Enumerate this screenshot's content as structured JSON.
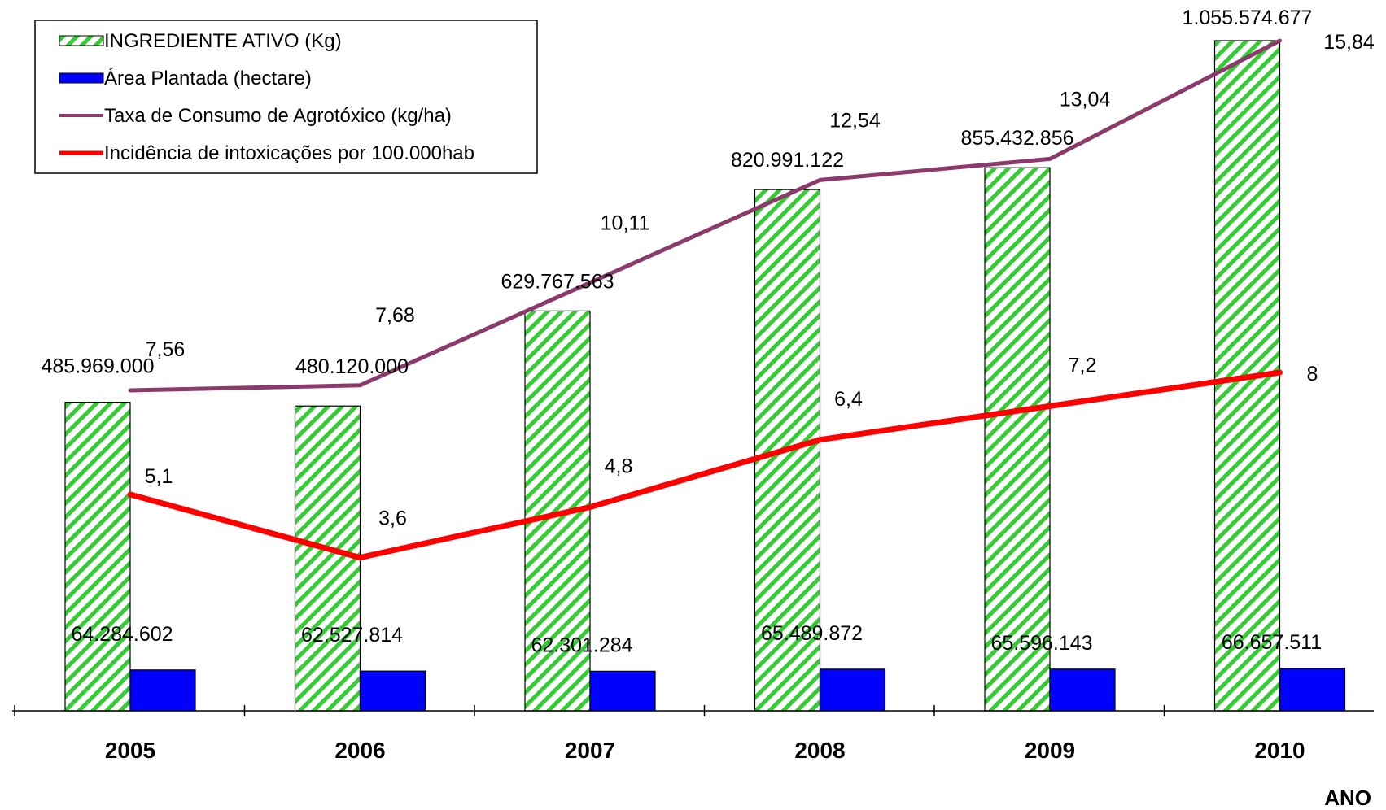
{
  "chart_data": {
    "type": "bar",
    "categories": [
      "2005",
      "2006",
      "2007",
      "2008",
      "2009",
      "2010"
    ],
    "xlabel": "ANO",
    "series": [
      {
        "name": "INGREDIENTE  ATIVO  (Kg)",
        "kind": "bar",
        "fill": "hatch-green",
        "color": "#33cc33",
        "values": [
          485969000,
          480120000,
          629767563,
          820991122,
          855432856,
          1055574677
        ],
        "labels": [
          "485.969.000",
          "480.120.000",
          "629.767.563",
          "820.991.122",
          "855.432.856",
          "1.055.574.677"
        ]
      },
      {
        "name": "Área Plantada (hectare)",
        "kind": "bar",
        "color": "#0000ff",
        "values": [
          64284602,
          62527814,
          62301284,
          65489872,
          65596143,
          66657511
        ],
        "labels": [
          "64.284.602",
          "62.527.814",
          "62.301.284",
          "65.489.872",
          "65.596.143",
          "66.657.511"
        ]
      },
      {
        "name": "Taxa de Consumo de Agrotóxico (kg/ha)",
        "kind": "line",
        "color": "#8b3a6b",
        "values": [
          7.56,
          7.68,
          10.11,
          12.54,
          13.04,
          15.84
        ],
        "labels": [
          "7,56",
          "7,68",
          "10,11",
          "12,54",
          "13,04",
          "15,84"
        ]
      },
      {
        "name": "Incidência de intoxicações por 100.000hab",
        "kind": "line",
        "color": "#ff0000",
        "values": [
          5.1,
          3.6,
          4.8,
          6.4,
          7.2,
          8
        ],
        "labels": [
          "5,1",
          "3,6",
          "4,8",
          "6,4",
          "7,2",
          "8"
        ]
      }
    ],
    "legend": "top-left",
    "grid": false
  }
}
